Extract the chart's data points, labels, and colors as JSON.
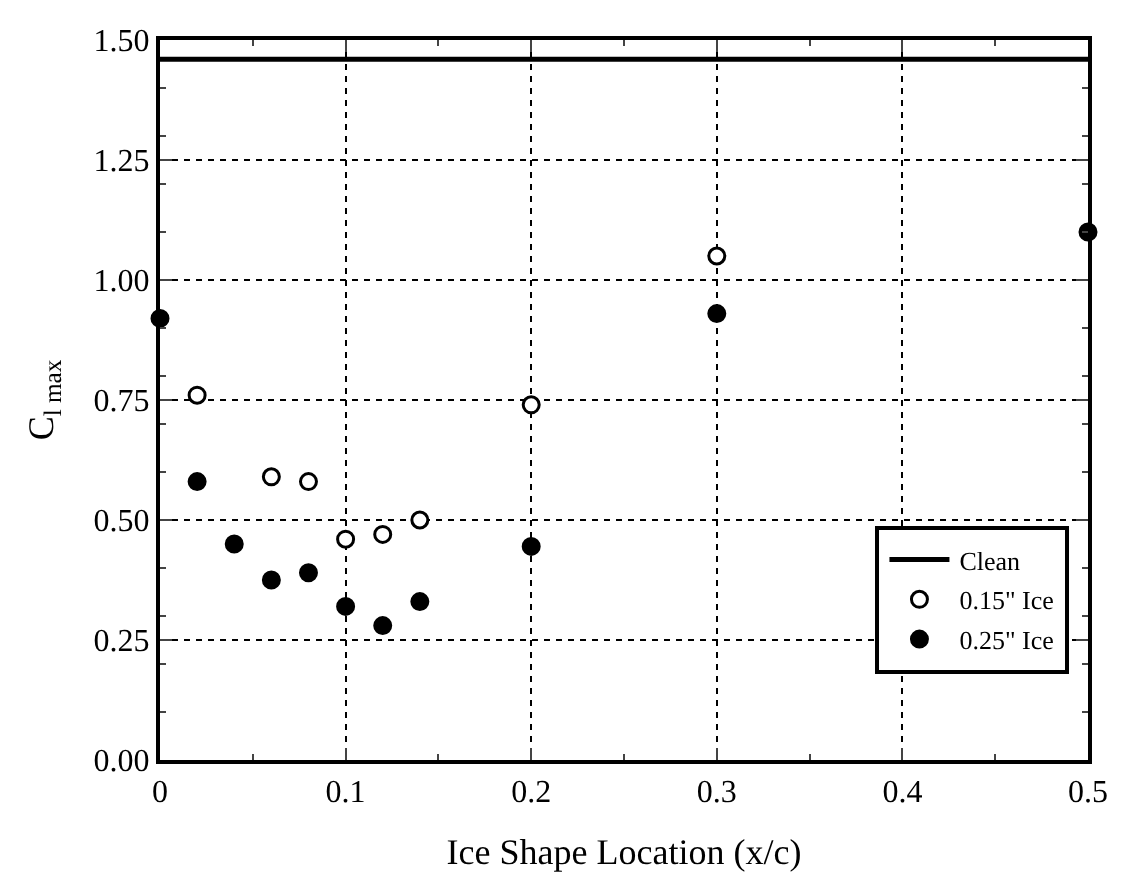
{
  "chart_data": {
    "type": "scatter",
    "xlabel": "Ice Shape Location (x/c)",
    "ylabel": "C$_{l max}$",
    "xlim": [
      0,
      0.5
    ],
    "xticks": [
      0,
      0.1,
      0.2,
      0.3,
      0.4,
      0.5
    ],
    "ylim": [
      0,
      1.5
    ],
    "yticks": [
      {
        "value": 0,
        "label": "0.00"
      },
      {
        "value": 0.25,
        "label": "0.25"
      },
      {
        "value": 0.5,
        "label": "0.50"
      },
      {
        "value": 0.75,
        "label": "0.75"
      },
      {
        "value": 1,
        "label": "1.00"
      },
      {
        "value": 1.25,
        "label": "1.25"
      },
      {
        "value": 1.5,
        "label": "1.50"
      }
    ],
    "grid": true,
    "legend": "bottom right",
    "marker": "circle",
    "series": [
      {
        "name": "Clean",
        "type": "line",
        "color": "#000000",
        "x": [
          0,
          0.5
        ],
        "values": [
          1.46,
          1.46
        ],
        "marker": "none"
      },
      {
        "name": "0.15\" Ice",
        "color": "#ffffff",
        "x": [
          0.02,
          0.06,
          0.08,
          0.1,
          0.12,
          0.14,
          0.2,
          0.3
        ],
        "values": [
          0.76,
          0.59,
          0.58,
          0.46,
          0.47,
          0.5,
          0.74,
          1.05
        ]
      },
      {
        "name": "0.25\" Ice",
        "color": "#000000",
        "x": [
          0,
          0.02,
          0.04,
          0.06,
          0.08,
          0.1,
          0.12,
          0.14,
          0.2,
          0.3,
          0.5
        ],
        "values": [
          0.92,
          0.58,
          0.45,
          0.375,
          0.39,
          0.32,
          0.28,
          0.33,
          0.445,
          0.93,
          1.1
        ]
      }
    ]
  }
}
